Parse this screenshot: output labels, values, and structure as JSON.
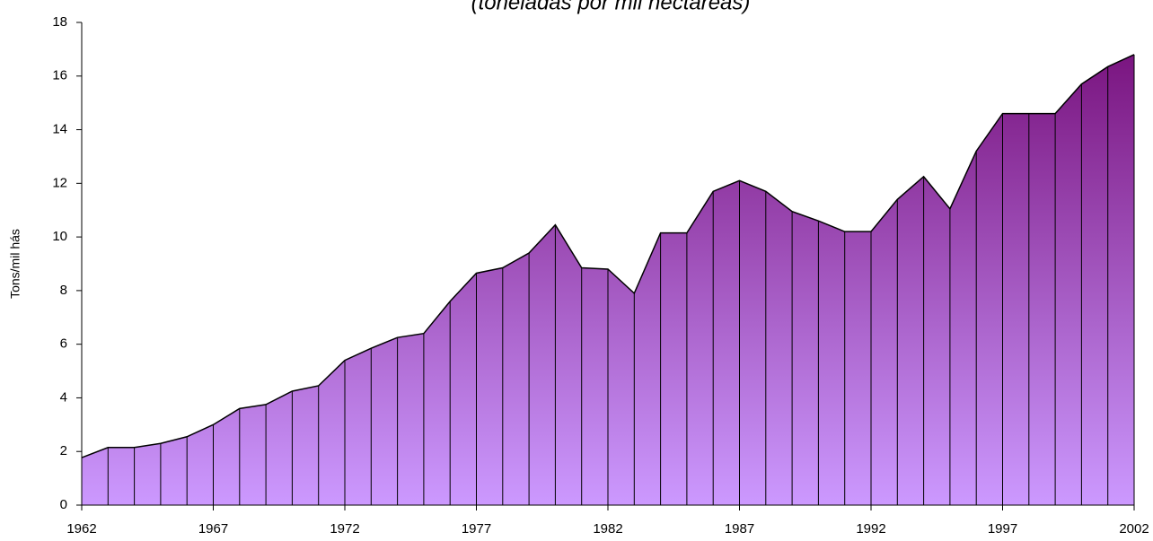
{
  "chart_data": {
    "type": "area",
    "subtitle": "(toneladas por mil hectareas)",
    "y_label": "Tons/mil hás",
    "x": [
      1962,
      1963,
      1964,
      1965,
      1966,
      1967,
      1968,
      1969,
      1970,
      1971,
      1972,
      1973,
      1974,
      1975,
      1976,
      1977,
      1978,
      1979,
      1980,
      1981,
      1982,
      1983,
      1984,
      1985,
      1986,
      1987,
      1988,
      1989,
      1990,
      1991,
      1992,
      1993,
      1994,
      1995,
      1996,
      1997,
      1998,
      1999,
      2000,
      2001,
      2002
    ],
    "values": [
      1.77,
      2.15,
      2.15,
      2.3,
      2.55,
      3.0,
      3.6,
      3.75,
      4.25,
      4.45,
      5.4,
      5.85,
      6.25,
      6.4,
      7.6,
      8.65,
      8.85,
      9.4,
      10.45,
      8.85,
      8.8,
      7.9,
      10.15,
      10.15,
      11.7,
      12.1,
      11.7,
      10.95,
      10.6,
      10.2,
      10.2,
      11.4,
      12.25,
      11.05,
      13.2,
      14.6,
      14.6,
      14.6,
      15.7,
      16.35,
      16.8
    ],
    "color_top": "#7a1580",
    "color_bottom": "#cc99ff",
    "xlim": [
      1962,
      2002
    ],
    "xticks": [
      1962,
      1967,
      1972,
      1977,
      1982,
      1987,
      1992,
      1997,
      2002
    ],
    "ylim": [
      0,
      18
    ],
    "yticks": [
      0,
      2,
      4,
      6,
      8,
      10,
      12,
      14,
      16,
      18
    ]
  }
}
